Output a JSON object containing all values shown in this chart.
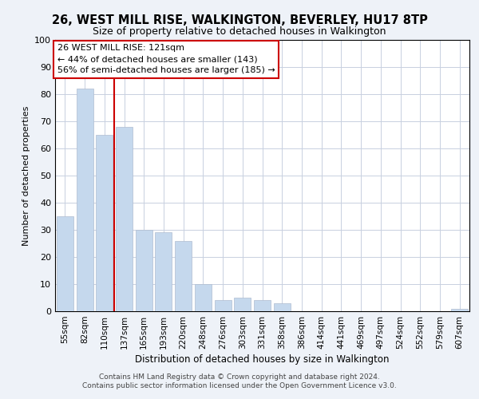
{
  "title": "26, WEST MILL RISE, WALKINGTON, BEVERLEY, HU17 8TP",
  "subtitle": "Size of property relative to detached houses in Walkington",
  "xlabel": "Distribution of detached houses by size in Walkington",
  "ylabel": "Number of detached properties",
  "bar_labels": [
    "55sqm",
    "82sqm",
    "110sqm",
    "137sqm",
    "165sqm",
    "193sqm",
    "220sqm",
    "248sqm",
    "276sqm",
    "303sqm",
    "331sqm",
    "358sqm",
    "386sqm",
    "414sqm",
    "441sqm",
    "469sqm",
    "497sqm",
    "524sqm",
    "552sqm",
    "579sqm",
    "607sqm"
  ],
  "bar_values": [
    35,
    82,
    65,
    68,
    30,
    29,
    26,
    10,
    4,
    5,
    4,
    3,
    0,
    0,
    0,
    0,
    0,
    0,
    0,
    0,
    1
  ],
  "bar_color": "#c5d8ed",
  "bar_edge_color": "#b0bcd0",
  "vline_color": "#cc0000",
  "annotation_line1": "26 WEST MILL RISE: 121sqm",
  "annotation_line2": "← 44% of detached houses are smaller (143)",
  "annotation_line3": "56% of semi-detached houses are larger (185) →",
  "annotation_box_color": "#ffffff",
  "annotation_box_edge_color": "#cc0000",
  "ylim": [
    0,
    100
  ],
  "yticks": [
    0,
    10,
    20,
    30,
    40,
    50,
    60,
    70,
    80,
    90,
    100
  ],
  "footer_line1": "Contains HM Land Registry data © Crown copyright and database right 2024.",
  "footer_line2": "Contains public sector information licensed under the Open Government Licence v3.0.",
  "bg_color": "#eef2f8",
  "plot_bg_color": "#ffffff",
  "grid_color": "#c8d0e0"
}
